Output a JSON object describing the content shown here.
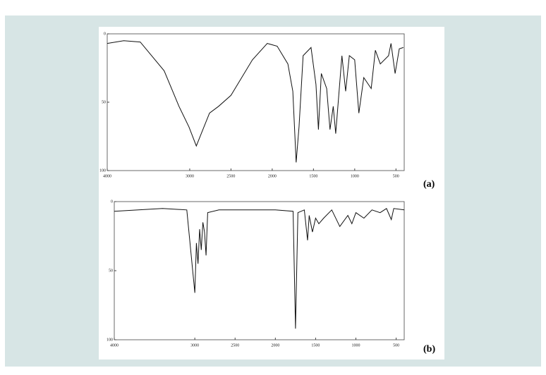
{
  "chart_data": [
    {
      "type": "line",
      "label": "(a)",
      "x": [
        4000,
        3800,
        3600,
        3310,
        3130,
        3010,
        2920,
        2860,
        2760,
        2650,
        2500,
        2240,
        2060,
        1940,
        1810,
        1750,
        1710,
        1675,
        1625,
        1530,
        1470,
        1440,
        1405,
        1340,
        1300,
        1260,
        1230,
        1155,
        1110,
        1065,
        1000,
        950,
        890,
        800,
        750,
        690,
        590,
        560,
        510,
        460,
        410
      ],
      "series": [
        {
          "color": "#111111",
          "values": [
            7,
            5,
            6,
            27,
            53,
            68,
            82,
            73,
            58,
            53,
            45,
            19,
            7,
            9,
            22,
            42,
            94,
            68,
            16,
            10,
            37,
            70,
            29,
            40,
            70,
            53,
            73,
            16,
            42,
            16,
            19,
            58,
            32,
            40,
            12,
            22,
            16,
            7,
            29,
            11,
            10
          ]
        }
      ],
      "xlim": [
        4000,
        400
      ],
      "xticks": [
        4000,
        3000,
        2500,
        2000,
        1500,
        1000,
        500
      ],
      "ylim": [
        100,
        0
      ],
      "yticks": [
        0,
        50,
        100
      ]
    },
    {
      "type": "line",
      "label": "(b)",
      "x": [
        4000,
        3700,
        3400,
        3100,
        3000,
        2980,
        2960,
        2940,
        2920,
        2900,
        2880,
        2860,
        2840,
        2700,
        2000,
        1780,
        1750,
        1720,
        1640,
        1600,
        1580,
        1540,
        1500,
        1460,
        1400,
        1300,
        1200,
        1100,
        1050,
        1000,
        900,
        800,
        700,
        620,
        560,
        530,
        400
      ],
      "series": [
        {
          "color": "#111111",
          "values": [
            7,
            6,
            5,
            6,
            66,
            30,
            45,
            20,
            35,
            15,
            22,
            39,
            8,
            6,
            6,
            7,
            92,
            8,
            6,
            28,
            10,
            22,
            12,
            16,
            12,
            6,
            18,
            10,
            16,
            8,
            12,
            6,
            8,
            5,
            13,
            5,
            6
          ]
        }
      ],
      "xlim": [
        4000,
        400
      ],
      "xticks": [
        4000,
        3000,
        2500,
        2000,
        1500,
        1000,
        500
      ],
      "ylim": [
        100,
        0
      ],
      "yticks": [
        0,
        50,
        100
      ]
    }
  ]
}
